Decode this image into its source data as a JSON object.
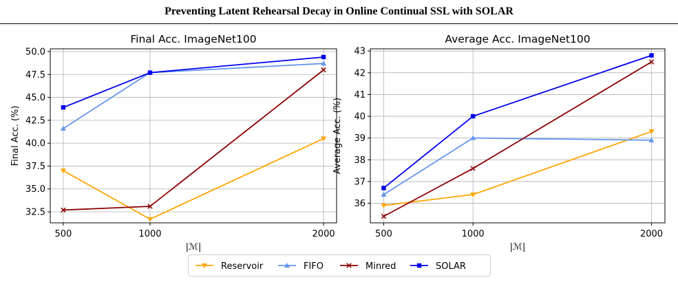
{
  "header": {
    "title": "Preventing Latent Rehearsal Decay in Online Continual SSL with SOLAR"
  },
  "chart_data": [
    {
      "type": "line",
      "title": "Final Acc. ImageNet100",
      "xlabel": "|ℳ|",
      "ylabel": "Final Acc. (%)",
      "x": [
        500,
        1000,
        2000
      ],
      "x_tick_labels": [
        "500",
        "1000",
        "2000"
      ],
      "ylim": [
        31.3,
        50.3
      ],
      "y_ticks": [
        32.5,
        35.0,
        37.5,
        40.0,
        42.5,
        45.0,
        47.5,
        50.0
      ],
      "y_tick_labels": [
        "32.5",
        "35.0",
        "37.5",
        "40.0",
        "42.5",
        "45.0",
        "47.5",
        "50.0"
      ],
      "grid": true,
      "series": [
        {
          "name": "Reservoir",
          "values": [
            37.0,
            31.7,
            40.5
          ],
          "color": "#FFA500",
          "marker": "triangle-down"
        },
        {
          "name": "FIFO",
          "values": [
            41.6,
            47.7,
            48.7
          ],
          "color": "#6495ED",
          "marker": "triangle-up"
        },
        {
          "name": "Minred",
          "values": [
            32.7,
            33.1,
            48.0
          ],
          "color": "#8B0000",
          "marker": "x"
        },
        {
          "name": "SOLAR",
          "values": [
            43.9,
            47.7,
            49.4
          ],
          "color": "#0000EE",
          "marker": "square"
        }
      ]
    },
    {
      "type": "line",
      "title": "Average Acc. ImageNet100",
      "xlabel": "|ℳ|",
      "ylabel": "Average Acc. (%)",
      "x": [
        500,
        1000,
        2000
      ],
      "x_tick_labels": [
        "500",
        "1000",
        "2000"
      ],
      "ylim": [
        35.1,
        43.1
      ],
      "y_ticks": [
        36,
        37,
        38,
        39,
        40,
        41,
        42,
        43
      ],
      "y_tick_labels": [
        "36",
        "37",
        "38",
        "39",
        "40",
        "41",
        "42",
        "43"
      ],
      "grid": true,
      "series": [
        {
          "name": "Reservoir",
          "values": [
            35.9,
            36.4,
            39.3
          ],
          "color": "#FFA500",
          "marker": "triangle-down"
        },
        {
          "name": "FIFO",
          "values": [
            36.4,
            39.0,
            38.9
          ],
          "color": "#6495ED",
          "marker": "triangle-up"
        },
        {
          "name": "Minred",
          "values": [
            35.4,
            37.6,
            42.5
          ],
          "color": "#8B0000",
          "marker": "x"
        },
        {
          "name": "SOLAR",
          "values": [
            36.7,
            40.0,
            42.8
          ],
          "color": "#0000EE",
          "marker": "square"
        }
      ]
    }
  ],
  "legend": {
    "placement": "bottom-center",
    "items": [
      {
        "label": "Reservoir",
        "color": "#FFA500",
        "marker": "triangle-down"
      },
      {
        "label": "FIFO",
        "color": "#6495ED",
        "marker": "triangle-up"
      },
      {
        "label": "Minred",
        "color": "#8B0000",
        "marker": "x"
      },
      {
        "label": "SOLAR",
        "color": "#0000EE",
        "marker": "square"
      }
    ]
  }
}
